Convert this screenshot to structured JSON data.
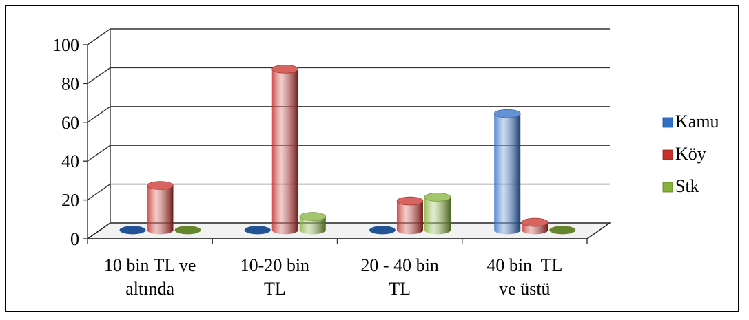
{
  "chart_data": {
    "type": "bar",
    "categories": [
      "10 bin TL ve altında",
      "10-20 bin TL",
      "20 - 40 bin TL",
      "40 bin  TL ve üstü"
    ],
    "category_lines": [
      [
        "10 bin TL ve",
        "altında"
      ],
      [
        "10-20 bin",
        "TL"
      ],
      [
        "20 - 40 bin",
        "TL"
      ],
      [
        "40 bin  TL",
        "ve üstü"
      ]
    ],
    "series": [
      {
        "name": "Kamu",
        "values": [
          0,
          0,
          0,
          60
        ],
        "color": "#2f6fc6"
      },
      {
        "name": "Köy",
        "values": [
          23,
          83,
          15,
          4
        ],
        "color": "#c8302c"
      },
      {
        "name": "Stk",
        "values": [
          0,
          7,
          17,
          0
        ],
        "color": "#86b23a"
      }
    ],
    "yticks": [
      "0",
      "20",
      "40",
      "60",
      "80",
      "100"
    ],
    "ylim": [
      0,
      100
    ],
    "legend_position": "right",
    "grid": true,
    "style": "3d-cylinder"
  }
}
